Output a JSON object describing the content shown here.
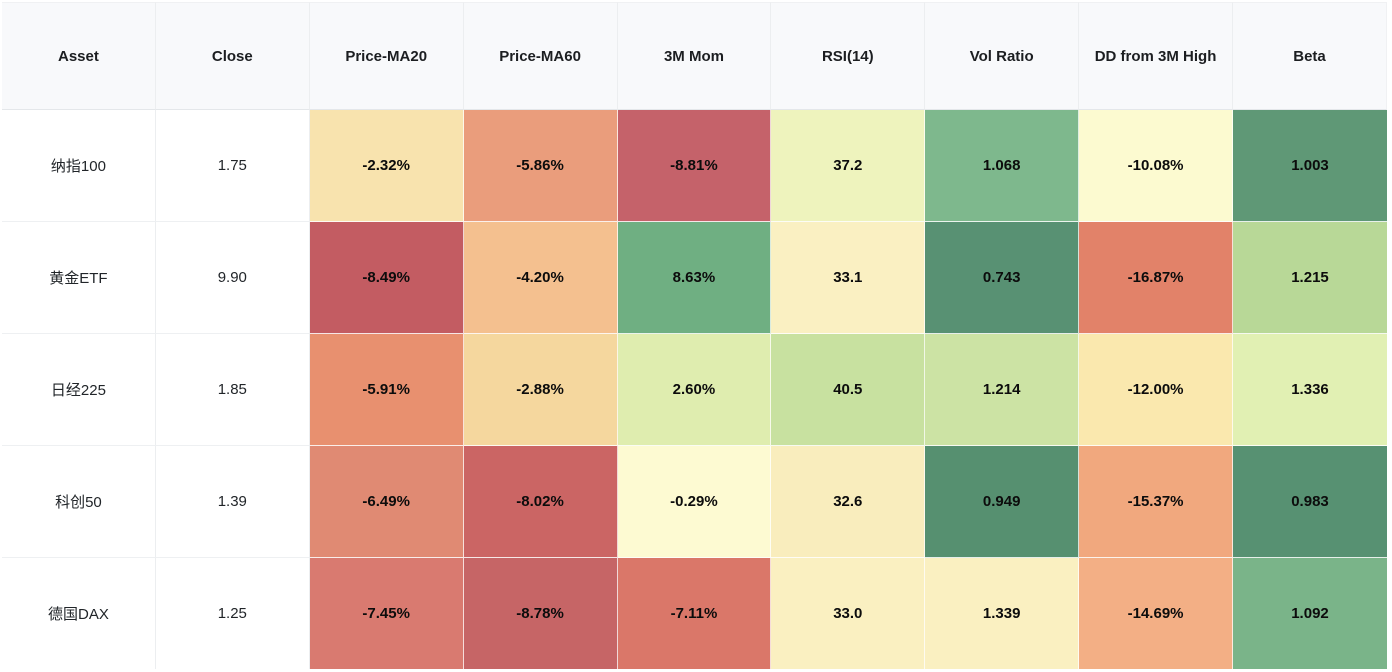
{
  "colors": {
    "header_bg": "#f8f9fb",
    "grid_line": "#eceef0",
    "page_bg": "#ffffff",
    "heatmap_red": "#c5626a",
    "heatmap_yellow": "#fcfad0",
    "heatmap_green": "#569070"
  },
  "table": {
    "columns": [
      "Asset",
      "Close",
      "Price-MA20",
      "Price-MA60",
      "3M Mom",
      "RSI(14)",
      "Vol Ratio",
      "DD from 3M High",
      "Beta"
    ],
    "rows": [
      {
        "asset": "纳指100",
        "close": "1.75",
        "metrics": [
          {
            "text": "-2.32%",
            "bg": "#F8E3AE"
          },
          {
            "text": "-5.86%",
            "bg": "#EA9D7C"
          },
          {
            "text": "-8.81%",
            "bg": "#C5626A"
          },
          {
            "text": "37.2",
            "bg": "#EEF3BD"
          },
          {
            "text": "1.068",
            "bg": "#7EB88D"
          },
          {
            "text": "-10.08%",
            "bg": "#FCFAD0"
          },
          {
            "text": "1.003",
            "bg": "#5F9876"
          }
        ]
      },
      {
        "asset": "黄金ETF",
        "close": "9.90",
        "metrics": [
          {
            "text": "-8.49%",
            "bg": "#C35C62"
          },
          {
            "text": "-4.20%",
            "bg": "#F4C08F"
          },
          {
            "text": "8.63%",
            "bg": "#6FAF82"
          },
          {
            "text": "33.1",
            "bg": "#FAF0C2"
          },
          {
            "text": "0.743",
            "bg": "#589173"
          },
          {
            "text": "-16.87%",
            "bg": "#E28269"
          },
          {
            "text": "1.215",
            "bg": "#B8D897"
          }
        ]
      },
      {
        "asset": "日经225",
        "close": "1.85",
        "metrics": [
          {
            "text": "-5.91%",
            "bg": "#E8906F"
          },
          {
            "text": "-2.88%",
            "bg": "#F5D79E"
          },
          {
            "text": "2.60%",
            "bg": "#DFEDAF"
          },
          {
            "text": "40.5",
            "bg": "#C8E1A0"
          },
          {
            "text": "1.214",
            "bg": "#CCE3A4"
          },
          {
            "text": "-12.00%",
            "bg": "#FAE8AE"
          },
          {
            "text": "1.336",
            "bg": "#E1F0B3"
          }
        ]
      },
      {
        "asset": "科创50",
        "close": "1.39",
        "metrics": [
          {
            "text": "-6.49%",
            "bg": "#E08A73"
          },
          {
            "text": "-8.02%",
            "bg": "#CB6564"
          },
          {
            "text": "-0.29%",
            "bg": "#FDFAD2"
          },
          {
            "text": "32.6",
            "bg": "#F9EDBD"
          },
          {
            "text": "0.949",
            "bg": "#569070"
          },
          {
            "text": "-15.37%",
            "bg": "#F1A87E"
          },
          {
            "text": "0.983",
            "bg": "#579172"
          }
        ]
      },
      {
        "asset": "德国DAX",
        "close": "1.25",
        "metrics": [
          {
            "text": "-7.45%",
            "bg": "#D97A70"
          },
          {
            "text": "-8.78%",
            "bg": "#C66566"
          },
          {
            "text": "-7.11%",
            "bg": "#DA7769"
          },
          {
            "text": "33.0",
            "bg": "#FAF0C1"
          },
          {
            "text": "1.339",
            "bg": "#FAF0C1"
          },
          {
            "text": "-14.69%",
            "bg": "#F3AF85"
          },
          {
            "text": "1.092",
            "bg": "#7AB489"
          }
        ]
      }
    ]
  },
  "chart_data": {
    "type": "heatmap",
    "title": "",
    "row_label_column": "Asset",
    "assets": [
      "纳指100",
      "黄金ETF",
      "日经225",
      "科创50",
      "德国DAX"
    ],
    "close": [
      1.75,
      9.9,
      1.85,
      1.39,
      1.25
    ],
    "metric_columns": [
      "Price-MA20",
      "Price-MA60",
      "3M Mom",
      "RSI(14)",
      "Vol Ratio",
      "DD from 3M High",
      "Beta"
    ],
    "values": [
      [
        -2.32,
        -5.86,
        -8.81,
        37.2,
        1.068,
        -10.08,
        1.003
      ],
      [
        -8.49,
        -4.2,
        8.63,
        33.1,
        0.743,
        -16.87,
        1.215
      ],
      [
        -5.91,
        -2.88,
        2.6,
        40.5,
        1.214,
        -12.0,
        1.336
      ],
      [
        -6.49,
        -8.02,
        -0.29,
        32.6,
        0.949,
        -15.37,
        0.983
      ],
      [
        -7.45,
        -8.78,
        -7.11,
        33.0,
        1.339,
        -14.69,
        1.092
      ]
    ],
    "percent_columns": [
      "Price-MA20",
      "Price-MA60",
      "3M Mom",
      "DD from 3M High"
    ],
    "palette": "red-yellow-green",
    "grid": true,
    "legend": "none"
  }
}
